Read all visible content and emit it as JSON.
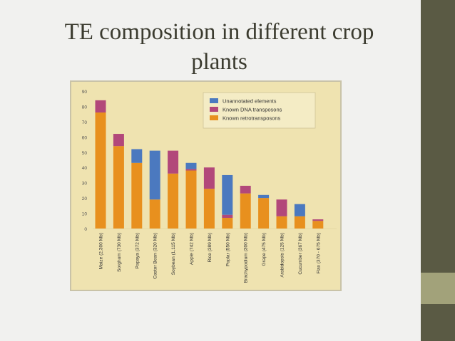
{
  "slide": {
    "title": "TE composition in different crop\nplants"
  },
  "chart_data": {
    "type": "bar",
    "stacked": true,
    "title": "",
    "xlabel": "",
    "ylabel": "",
    "ylim": [
      0,
      90
    ],
    "yticks": [
      0,
      10,
      20,
      30,
      40,
      50,
      60,
      70,
      80,
      90
    ],
    "grid": false,
    "legend_position": "top-right",
    "categories": [
      "Maize (2,300 Mb)",
      "Sorghum (730 Mb)",
      "Papaya (372 Mb)",
      "Castor Bean (320 Mb)",
      "Soybean (1,115 Mb)",
      "Apple (742 Mb)",
      "Rice (389 Mb)",
      "Poplar (550 Mb)",
      "Brachypodium (300 Mb)",
      "Grape (475 Mb)",
      "Arabidopsis (125 Mb)",
      "Cucumber (367 Mb)",
      "Flax (370 - 675 Mb)"
    ],
    "series": [
      {
        "name": "Known retrotransposons",
        "color": "#e8901e",
        "values": [
          76,
          54,
          43,
          19,
          36,
          38,
          26,
          7,
          23,
          20,
          8,
          8,
          5
        ]
      },
      {
        "name": "Known DNA transposons",
        "color": "#b2487a",
        "values": [
          8,
          8,
          0,
          0,
          15,
          1,
          14,
          2,
          5,
          0,
          11,
          0,
          1
        ]
      },
      {
        "name": "Unannotated elements",
        "color": "#4b79bf",
        "values": [
          0,
          0,
          9,
          32,
          0,
          4,
          0,
          26,
          0,
          2,
          0,
          8,
          0
        ]
      }
    ],
    "legend_order": [
      "Unannotated elements",
      "Known DNA transposons",
      "Known retrotransposons"
    ]
  }
}
